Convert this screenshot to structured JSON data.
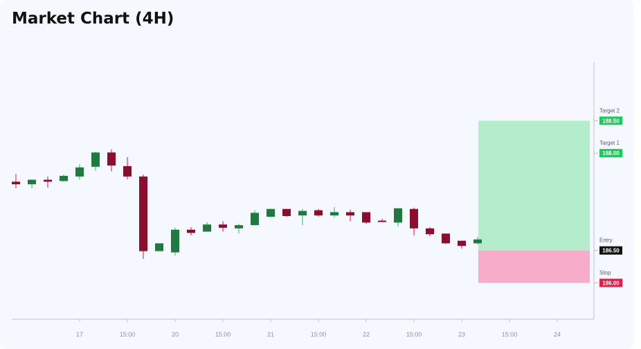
{
  "title": "Market Chart (4H)",
  "chart_data": {
    "type": "candlestick",
    "timeframe": "4H",
    "y_range": [
      185.44,
      189.4
    ],
    "x_ticks": [
      {
        "label": "17",
        "index": 4
      },
      {
        "label": "15:00",
        "index": 7
      },
      {
        "label": "20",
        "index": 10
      },
      {
        "label": "15:00",
        "index": 13
      },
      {
        "label": "21",
        "index": 16
      },
      {
        "label": "15:00",
        "index": 19
      },
      {
        "label": "22",
        "index": 22
      },
      {
        "label": "15:00",
        "index": 25
      },
      {
        "label": "23",
        "index": 28
      },
      {
        "label": "15:00",
        "index": 31
      },
      {
        "label": "24",
        "index": 34
      }
    ],
    "candles": [
      {
        "o": 187.56,
        "h": 187.68,
        "l": 187.46,
        "c": 187.52
      },
      {
        "o": 187.52,
        "h": 187.59,
        "l": 187.46,
        "c": 187.59
      },
      {
        "o": 187.59,
        "h": 187.64,
        "l": 187.47,
        "c": 187.56
      },
      {
        "o": 187.57,
        "h": 187.67,
        "l": 187.56,
        "c": 187.65
      },
      {
        "o": 187.64,
        "h": 187.83,
        "l": 187.59,
        "c": 187.78
      },
      {
        "o": 187.79,
        "h": 188.02,
        "l": 187.73,
        "c": 188.01
      },
      {
        "o": 188.01,
        "h": 188.06,
        "l": 187.72,
        "c": 187.81
      },
      {
        "o": 187.8,
        "h": 187.94,
        "l": 187.6,
        "c": 187.64
      },
      {
        "o": 187.64,
        "h": 187.67,
        "l": 186.37,
        "c": 186.49
      },
      {
        "o": 186.49,
        "h": 186.61,
        "l": 186.49,
        "c": 186.61
      },
      {
        "o": 186.47,
        "h": 186.85,
        "l": 186.42,
        "c": 186.82
      },
      {
        "o": 186.82,
        "h": 186.86,
        "l": 186.73,
        "c": 186.77
      },
      {
        "o": 186.79,
        "h": 186.94,
        "l": 186.79,
        "c": 186.9
      },
      {
        "o": 186.9,
        "h": 186.95,
        "l": 186.79,
        "c": 186.85
      },
      {
        "o": 186.84,
        "h": 186.91,
        "l": 186.76,
        "c": 186.89
      },
      {
        "o": 186.89,
        "h": 187.12,
        "l": 186.89,
        "c": 187.08
      },
      {
        "o": 187.02,
        "h": 187.14,
        "l": 187.01,
        "c": 187.14
      },
      {
        "o": 187.14,
        "h": 187.14,
        "l": 187.02,
        "c": 187.03
      },
      {
        "o": 187.04,
        "h": 187.14,
        "l": 186.89,
        "c": 187.11
      },
      {
        "o": 187.12,
        "h": 187.14,
        "l": 187.02,
        "c": 187.04
      },
      {
        "o": 187.04,
        "h": 187.17,
        "l": 187.01,
        "c": 187.09
      },
      {
        "o": 187.09,
        "h": 187.13,
        "l": 186.95,
        "c": 187.04
      },
      {
        "o": 187.09,
        "h": 187.09,
        "l": 186.91,
        "c": 186.93
      },
      {
        "o": 186.96,
        "h": 186.99,
        "l": 186.94,
        "c": 186.95
      },
      {
        "o": 186.93,
        "h": 187.15,
        "l": 186.87,
        "c": 187.15
      },
      {
        "o": 187.14,
        "h": 187.16,
        "l": 186.73,
        "c": 186.84
      },
      {
        "o": 186.84,
        "h": 186.86,
        "l": 186.72,
        "c": 186.75
      },
      {
        "o": 186.76,
        "h": 186.76,
        "l": 186.6,
        "c": 186.61
      },
      {
        "o": 186.65,
        "h": 186.65,
        "l": 186.53,
        "c": 186.57
      },
      {
        "o": 186.61,
        "h": 186.71,
        "l": 186.59,
        "c": 186.67
      }
    ],
    "trade_levels": [
      {
        "label": "Target 2",
        "value": "188.50",
        "price": 188.5,
        "color": "#22c55e"
      },
      {
        "label": "Target 1",
        "value": "188.00",
        "price": 188.0,
        "color": "#22c55e"
      },
      {
        "label": "Entry",
        "value": "186.50",
        "price": 186.5,
        "color": "#111111"
      },
      {
        "label": "Stop",
        "value": "186.00",
        "price": 186.0,
        "color": "#e11d48"
      }
    ],
    "zones": {
      "profit": {
        "from": 186.5,
        "to": 188.5,
        "color": "#b4edcc"
      },
      "loss": {
        "from": 186.0,
        "to": 186.5,
        "color": "#f7adc9"
      }
    },
    "colors": {
      "up": "#1f7a3f",
      "down": "#8b0e2e",
      "up_wick": "#5ccf8a",
      "down_wick": "#e84d7c"
    }
  }
}
